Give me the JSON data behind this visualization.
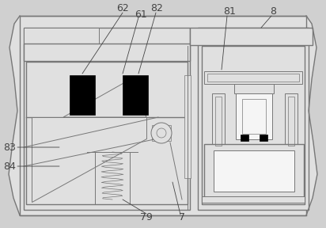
{
  "bg_color": "#e0e0e0",
  "line_color": "#777777",
  "black": "#000000",
  "white": "#f5f5f5",
  "fig_bg": "#d0d0d0",
  "lw_main": 1.0,
  "lw_inner": 0.7,
  "lw_thin": 0.5
}
